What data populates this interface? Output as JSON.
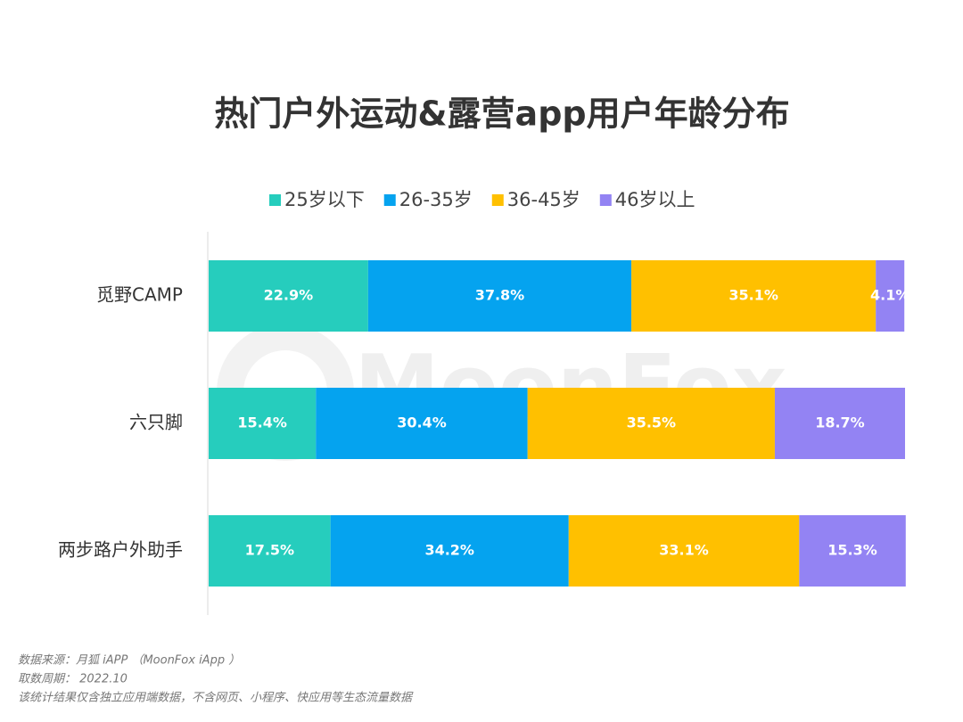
{
  "chart_data": {
    "type": "stacked-bar-horizontal",
    "title": "热门户外运动&露营app用户年龄分布",
    "watermark": "MoonFox",
    "categories": [
      "觅野CAMP",
      "六只脚",
      "两步路户外助手"
    ],
    "xlim": [
      0,
      100
    ],
    "legend": "top",
    "series": [
      {
        "name": "25岁以下",
        "color": "#26cdbd",
        "values": [
          22.9,
          15.4,
          17.5
        ],
        "value_labels": [
          "22.9%",
          "15.4%",
          "17.5%"
        ]
      },
      {
        "name": "26-35岁",
        "color": "#05a3ef",
        "values": [
          37.8,
          30.4,
          34.2
        ],
        "value_labels": [
          "37.8%",
          "30.4%",
          "34.2%"
        ]
      },
      {
        "name": "36-45岁",
        "color": "#ffc000",
        "values": [
          35.1,
          35.5,
          33.1
        ],
        "value_labels": [
          "35.1%",
          "35.5%",
          "33.1%"
        ]
      },
      {
        "name": "46岁以上",
        "color": "#9383f3",
        "values": [
          4.1,
          18.7,
          15.3
        ],
        "value_labels": [
          "4.1%",
          "18.7%",
          "15.3%"
        ]
      }
    ],
    "notes": [
      "数据来源：月狐 iAPP （MoonFox iApp ）",
      "取数周期： 2022.10",
      "该统计结果仅含独立应用端数据，不含网页、小程序、快应用等生态流量数据"
    ]
  }
}
